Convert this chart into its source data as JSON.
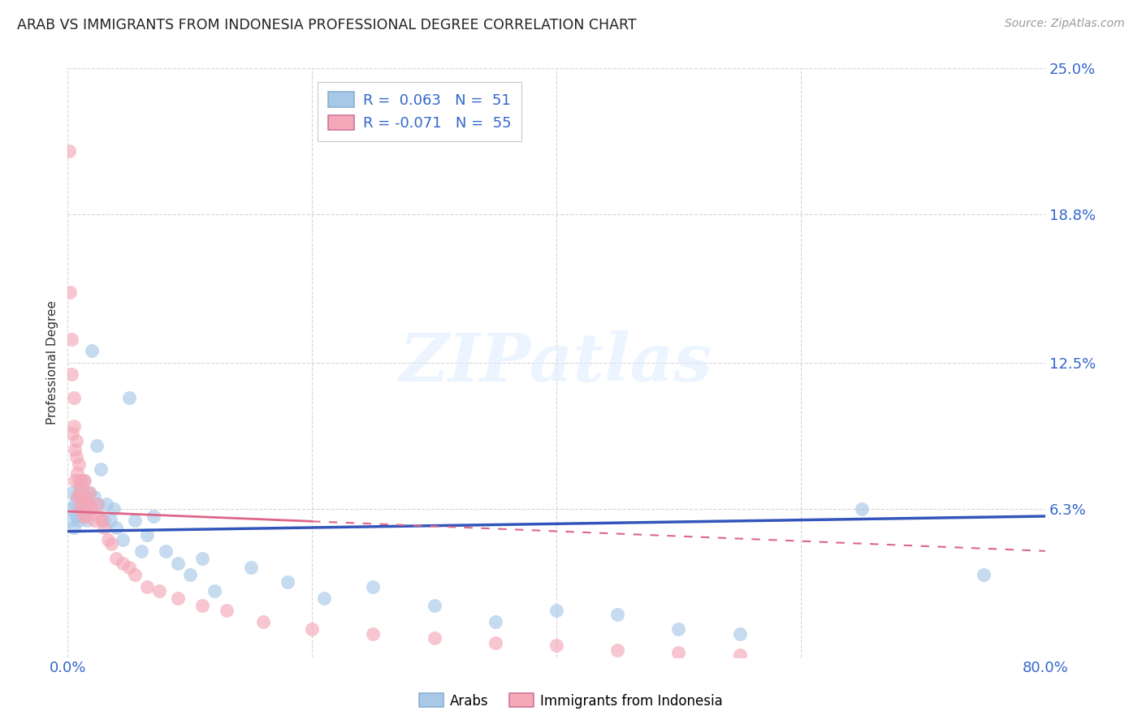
{
  "title": "ARAB VS IMMIGRANTS FROM INDONESIA PROFESSIONAL DEGREE CORRELATION CHART",
  "source": "Source: ZipAtlas.com",
  "ylabel": "Professional Degree",
  "xlim": [
    0,
    0.8
  ],
  "ylim": [
    0,
    0.25
  ],
  "yticks": [
    0.0,
    0.063,
    0.125,
    0.188,
    0.25
  ],
  "ytick_labels": [
    "",
    "6.3%",
    "12.5%",
    "18.8%",
    "25.0%"
  ],
  "xticks": [
    0.0,
    0.2,
    0.4,
    0.6,
    0.8
  ],
  "xtick_labels": [
    "0.0%",
    "",
    "",
    "",
    "80.0%"
  ],
  "grid_color": "#cccccc",
  "background_color": "#ffffff",
  "watermark": "ZIPatlas",
  "legend_r1": "R =  0.063   N =  51",
  "legend_r2": "R = -0.071   N =  55",
  "series1_color": "#a8c8e8",
  "series2_color": "#f4a8b8",
  "series1_edge": "#6699cc",
  "series2_edge": "#dd7799",
  "trendline1_color": "#3355bb",
  "trendline2_color": "#dd6688",
  "R1": 0.063,
  "N1": 51,
  "R2": -0.071,
  "N2": 55,
  "Arabs_x": [
    0.002,
    0.003,
    0.004,
    0.005,
    0.006,
    0.007,
    0.008,
    0.009,
    0.01,
    0.011,
    0.012,
    0.013,
    0.014,
    0.015,
    0.016,
    0.017,
    0.018,
    0.019,
    0.02,
    0.022,
    0.024,
    0.025,
    0.027,
    0.03,
    0.032,
    0.035,
    0.038,
    0.04,
    0.045,
    0.05,
    0.055,
    0.06,
    0.065,
    0.07,
    0.08,
    0.09,
    0.1,
    0.11,
    0.12,
    0.15,
    0.18,
    0.21,
    0.25,
    0.3,
    0.35,
    0.4,
    0.45,
    0.5,
    0.55,
    0.65,
    0.75
  ],
  "Arabs_y": [
    0.058,
    0.063,
    0.07,
    0.055,
    0.065,
    0.06,
    0.068,
    0.058,
    0.072,
    0.065,
    0.06,
    0.075,
    0.062,
    0.068,
    0.058,
    0.065,
    0.07,
    0.063,
    0.13,
    0.068,
    0.09,
    0.065,
    0.08,
    0.058,
    0.065,
    0.058,
    0.063,
    0.055,
    0.05,
    0.11,
    0.058,
    0.045,
    0.052,
    0.06,
    0.045,
    0.04,
    0.035,
    0.042,
    0.028,
    0.038,
    0.032,
    0.025,
    0.03,
    0.022,
    0.015,
    0.02,
    0.018,
    0.012,
    0.01,
    0.063,
    0.035
  ],
  "Indonesia_x": [
    0.001,
    0.002,
    0.003,
    0.003,
    0.004,
    0.005,
    0.005,
    0.006,
    0.006,
    0.007,
    0.007,
    0.008,
    0.008,
    0.009,
    0.009,
    0.01,
    0.01,
    0.011,
    0.011,
    0.012,
    0.012,
    0.013,
    0.013,
    0.014,
    0.015,
    0.015,
    0.016,
    0.017,
    0.018,
    0.02,
    0.022,
    0.024,
    0.026,
    0.028,
    0.03,
    0.033,
    0.036,
    0.04,
    0.045,
    0.05,
    0.055,
    0.065,
    0.075,
    0.09,
    0.11,
    0.13,
    0.16,
    0.2,
    0.25,
    0.3,
    0.35,
    0.4,
    0.45,
    0.5,
    0.55
  ],
  "Indonesia_y": [
    0.215,
    0.155,
    0.12,
    0.135,
    0.095,
    0.11,
    0.098,
    0.088,
    0.075,
    0.085,
    0.092,
    0.078,
    0.068,
    0.075,
    0.082,
    0.07,
    0.063,
    0.075,
    0.068,
    0.065,
    0.072,
    0.06,
    0.068,
    0.075,
    0.068,
    0.06,
    0.063,
    0.065,
    0.07,
    0.063,
    0.058,
    0.065,
    0.06,
    0.058,
    0.055,
    0.05,
    0.048,
    0.042,
    0.04,
    0.038,
    0.035,
    0.03,
    0.028,
    0.025,
    0.022,
    0.02,
    0.015,
    0.012,
    0.01,
    0.008,
    0.006,
    0.005,
    0.003,
    0.002,
    0.001
  ]
}
